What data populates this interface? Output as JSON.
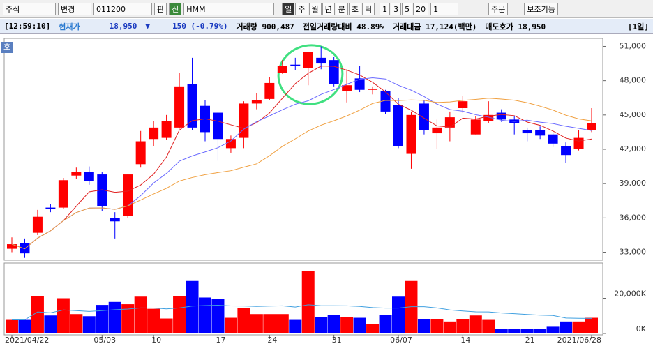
{
  "toolbar": {
    "market": "주식",
    "change": "변경",
    "code": "011200",
    "board": "판",
    "badge": "신",
    "name": "HMM",
    "periods": [
      "일",
      "주",
      "월",
      "년",
      "분",
      "초",
      "틱"
    ],
    "counts": [
      "1",
      "3",
      "5",
      "20"
    ],
    "count_input": "1",
    "order": "주문",
    "indicators": "보조기능"
  },
  "status": {
    "time": "[12:59:10]",
    "price_label": "현재가",
    "price": "18,950",
    "arrow": "▼",
    "change": "150 (-0.79%)",
    "volume": "거래량 900,487",
    "prev_ratio": "전일거래량대비 48.89%",
    "amount": "거래대금 17,124(백만)",
    "ask": "매도호가 18,950",
    "interval": "[1일]"
  },
  "side_button": "호",
  "chart_data": {
    "type": "candlestick",
    "categories": [
      "2021/04/22",
      null,
      null,
      null,
      null,
      null,
      null,
      "05/03",
      null,
      null,
      null,
      "10",
      null,
      null,
      null,
      null,
      "17",
      null,
      null,
      null,
      "24",
      null,
      null,
      null,
      null,
      "31",
      null,
      null,
      null,
      null,
      "06/07",
      null,
      null,
      null,
      null,
      "14",
      null,
      null,
      null,
      null,
      "21",
      null,
      null,
      null,
      null,
      "2021/06/28"
    ],
    "open": [
      33300,
      33800,
      34700,
      36900,
      36900,
      39700,
      40000,
      39800,
      36000,
      36200,
      40700,
      42900,
      43000,
      43900,
      47700,
      45800,
      45200,
      42100,
      43000,
      46000,
      46400,
      48700,
      49400,
      49100,
      50000,
      49800,
      47100,
      48200,
      47200,
      47100,
      45900,
      41600,
      46000,
      43400,
      43900,
      45600,
      43300,
      44500,
      45200,
      44600,
      43700,
      43700,
      43300,
      42300,
      42000,
      43700
    ],
    "high": [
      34300,
      34200,
      36700,
      37200,
      39500,
      40400,
      40500,
      40000,
      36500,
      39800,
      43600,
      44500,
      45000,
      48700,
      50000,
      46300,
      45300,
      43200,
      46200,
      46900,
      48300,
      49800,
      50000,
      50500,
      51000,
      50100,
      49000,
      49300,
      47500,
      47200,
      46500,
      45300,
      46300,
      44600,
      45300,
      46700,
      44900,
      46200,
      45500,
      44900,
      43900,
      44000,
      43500,
      42600,
      43700,
      45600
    ],
    "low": [
      33000,
      32500,
      34500,
      36500,
      36800,
      39400,
      38900,
      36600,
      34200,
      36000,
      40400,
      42300,
      42800,
      43800,
      43700,
      42700,
      41000,
      41700,
      42100,
      45500,
      46300,
      48600,
      48900,
      47600,
      49000,
      47500,
      46100,
      47000,
      46800,
      45100,
      42100,
      40300,
      43300,
      42000,
      42700,
      45200,
      43300,
      44300,
      44400,
      43300,
      42700,
      42900,
      42200,
      40800,
      41900,
      43500
    ],
    "close": [
      33700,
      32900,
      36100,
      36800,
      39300,
      40000,
      39200,
      37000,
      35700,
      39800,
      42700,
      43900,
      44500,
      47500,
      43900,
      43500,
      42900,
      42900,
      46000,
      46300,
      47800,
      49300,
      49300,
      50500,
      49500,
      47700,
      47600,
      47200,
      47300,
      45300,
      42300,
      45000,
      43700,
      43900,
      44800,
      46200,
      44600,
      45000,
      44600,
      44300,
      43400,
      43200,
      42500,
      41500,
      43000,
      44300
    ],
    "up_color": "#ff0000",
    "down_color": "#0000ff",
    "ylim": [
      32300,
      51700
    ],
    "yticks": [
      {
        "value": 33000,
        "label": "33,000"
      },
      {
        "value": 36000,
        "label": "36,000"
      },
      {
        "value": 39000,
        "label": "39,000"
      },
      {
        "value": 42000,
        "label": "42,000"
      },
      {
        "value": 45000,
        "label": "45,000"
      },
      {
        "value": 48000,
        "label": "48,000"
      },
      {
        "value": 51000,
        "label": "51,000"
      }
    ],
    "volume": [
      7700,
      7700,
      21300,
      10200,
      20000,
      11000,
      9800,
      16200,
      17900,
      16600,
      20900,
      14000,
      8500,
      21300,
      29800,
      20400,
      19600,
      8900,
      14500,
      11000,
      11000,
      11000,
      7700,
      35300,
      9400,
      10600,
      9400,
      8900,
      5500,
      10600,
      20900,
      29800,
      8100,
      8100,
      6800,
      8100,
      10200,
      7700,
      2600,
      2600,
      2600,
      2600,
      3800,
      6800,
      6800,
      8900
    ],
    "volume_ylim": [
      0,
      40000
    ],
    "volume_yticks": [
      {
        "value": 0,
        "label": "0K"
      },
      {
        "value": 20000,
        "label": "20,000K"
      }
    ]
  }
}
